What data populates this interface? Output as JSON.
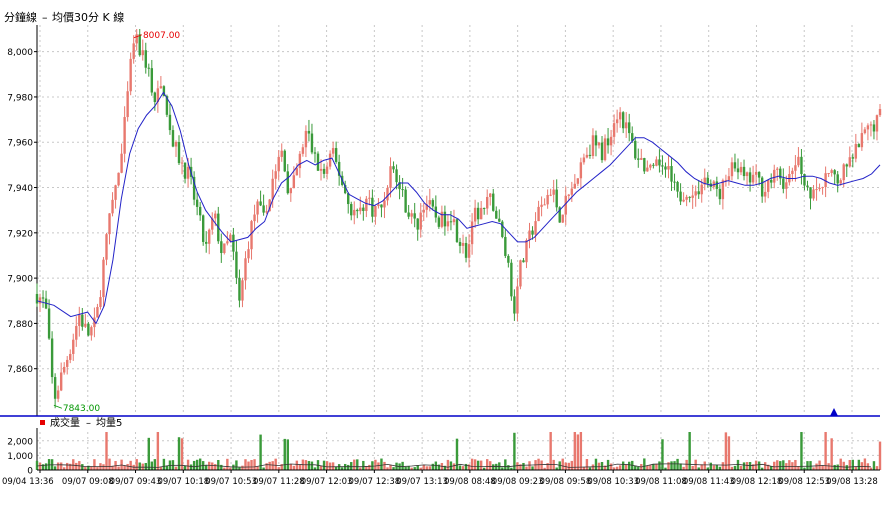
{
  "header": {
    "title": "分鐘線",
    "legend_dash": "–",
    "legend_label": "均價30分 K 線"
  },
  "volume_panel": {
    "legend_label": "成交量",
    "ma_label": "均量5",
    "yticks": [
      "2,000",
      "1,000",
      "0"
    ],
    "ytick_values": [
      2000,
      1000,
      0
    ],
    "ylim": [
      0,
      2600
    ]
  },
  "chart_data": {
    "type": "candlestick",
    "title": "分鐘線",
    "series": [
      {
        "name": "K 線",
        "kind": "candlestick"
      },
      {
        "name": "均價30",
        "kind": "line"
      }
    ],
    "ylim": [
      7840,
      8010
    ],
    "yticks": [
      8000,
      7980,
      7960,
      7940,
      7920,
      7900,
      7880,
      7860
    ],
    "ytick_labels": [
      "8,000",
      "7,980",
      "7,960",
      "7,940",
      "7,920",
      "7,900",
      "7,880",
      "7,860"
    ],
    "xtick_labels": [
      "09/04 13:36",
      "09/07 09:08",
      "09/07 09:43",
      "09/07 10:18",
      "09/07 10:53",
      "09/07 11:28",
      "09/07 12:03",
      "09/07 12:38",
      "09/07 13:13",
      "09/08 08:48",
      "09/08 09:23",
      "09/08 09:58",
      "09/08 10:33",
      "09/08 11:08",
      "09/08 11:43",
      "09/08 12:18",
      "09/08 12:53",
      "09/08 13:28"
    ],
    "annotations": {
      "high": {
        "label": "8007.00",
        "value": 8007
      },
      "low": {
        "label": "7843.00",
        "value": 7843
      }
    },
    "close_path": [
      {
        "t": 0.0,
        "v": 7893
      },
      {
        "t": 0.01,
        "v": 7888
      },
      {
        "t": 0.02,
        "v": 7846
      },
      {
        "t": 0.04,
        "v": 7870
      },
      {
        "t": 0.05,
        "v": 7884
      },
      {
        "t": 0.06,
        "v": 7875
      },
      {
        "t": 0.07,
        "v": 7880
      },
      {
        "t": 0.08,
        "v": 7910
      },
      {
        "t": 0.09,
        "v": 7935
      },
      {
        "t": 0.1,
        "v": 7952
      },
      {
        "t": 0.11,
        "v": 7990
      },
      {
        "t": 0.115,
        "v": 8006
      },
      {
        "t": 0.13,
        "v": 7995
      },
      {
        "t": 0.14,
        "v": 7978
      },
      {
        "t": 0.15,
        "v": 7985
      },
      {
        "t": 0.16,
        "v": 7960
      },
      {
        "t": 0.17,
        "v": 7952
      },
      {
        "t": 0.18,
        "v": 7945
      },
      {
        "t": 0.19,
        "v": 7930
      },
      {
        "t": 0.2,
        "v": 7912
      },
      {
        "t": 0.21,
        "v": 7928
      },
      {
        "t": 0.22,
        "v": 7910
      },
      {
        "t": 0.23,
        "v": 7918
      },
      {
        "t": 0.24,
        "v": 7888
      },
      {
        "t": 0.25,
        "v": 7915
      },
      {
        "t": 0.26,
        "v": 7932
      },
      {
        "t": 0.27,
        "v": 7925
      },
      {
        "t": 0.28,
        "v": 7945
      },
      {
        "t": 0.29,
        "v": 7955
      },
      {
        "t": 0.3,
        "v": 7935
      },
      {
        "t": 0.31,
        "v": 7950
      },
      {
        "t": 0.32,
        "v": 7965
      },
      {
        "t": 0.33,
        "v": 7952
      },
      {
        "t": 0.34,
        "v": 7945
      },
      {
        "t": 0.35,
        "v": 7955
      },
      {
        "t": 0.36,
        "v": 7945
      },
      {
        "t": 0.37,
        "v": 7932
      },
      {
        "t": 0.38,
        "v": 7928
      },
      {
        "t": 0.39,
        "v": 7935
      },
      {
        "t": 0.4,
        "v": 7930
      },
      {
        "t": 0.41,
        "v": 7932
      },
      {
        "t": 0.42,
        "v": 7950
      },
      {
        "t": 0.43,
        "v": 7940
      },
      {
        "t": 0.44,
        "v": 7930
      },
      {
        "t": 0.45,
        "v": 7922
      },
      {
        "t": 0.46,
        "v": 7935
      },
      {
        "t": 0.47,
        "v": 7928
      },
      {
        "t": 0.48,
        "v": 7925
      },
      {
        "t": 0.49,
        "v": 7930
      },
      {
        "t": 0.5,
        "v": 7918
      },
      {
        "t": 0.51,
        "v": 7910
      },
      {
        "t": 0.52,
        "v": 7928
      },
      {
        "t": 0.53,
        "v": 7930
      },
      {
        "t": 0.54,
        "v": 7935
      },
      {
        "t": 0.55,
        "v": 7920
      },
      {
        "t": 0.56,
        "v": 7905
      },
      {
        "t": 0.565,
        "v": 7882
      },
      {
        "t": 0.57,
        "v": 7900
      },
      {
        "t": 0.58,
        "v": 7912
      },
      {
        "t": 0.59,
        "v": 7925
      },
      {
        "t": 0.6,
        "v": 7932
      },
      {
        "t": 0.61,
        "v": 7940
      },
      {
        "t": 0.62,
        "v": 7928
      },
      {
        "t": 0.63,
        "v": 7935
      },
      {
        "t": 0.64,
        "v": 7945
      },
      {
        "t": 0.65,
        "v": 7955
      },
      {
        "t": 0.66,
        "v": 7960
      },
      {
        "t": 0.67,
        "v": 7955
      },
      {
        "t": 0.68,
        "v": 7965
      },
      {
        "t": 0.69,
        "v": 7975
      },
      {
        "t": 0.7,
        "v": 7965
      },
      {
        "t": 0.71,
        "v": 7955
      },
      {
        "t": 0.72,
        "v": 7950
      },
      {
        "t": 0.73,
        "v": 7945
      },
      {
        "t": 0.74,
        "v": 7952
      },
      {
        "t": 0.75,
        "v": 7945
      },
      {
        "t": 0.76,
        "v": 7935
      },
      {
        "t": 0.77,
        "v": 7940
      },
      {
        "t": 0.78,
        "v": 7935
      },
      {
        "t": 0.79,
        "v": 7945
      },
      {
        "t": 0.8,
        "v": 7940
      },
      {
        "t": 0.81,
        "v": 7938
      },
      {
        "t": 0.82,
        "v": 7945
      },
      {
        "t": 0.83,
        "v": 7950
      },
      {
        "t": 0.84,
        "v": 7942
      },
      {
        "t": 0.85,
        "v": 7945
      },
      {
        "t": 0.86,
        "v": 7940
      },
      {
        "t": 0.87,
        "v": 7943
      },
      {
        "t": 0.88,
        "v": 7946
      },
      {
        "t": 0.89,
        "v": 7940
      },
      {
        "t": 0.9,
        "v": 7952
      },
      {
        "t": 0.91,
        "v": 7945
      },
      {
        "t": 0.92,
        "v": 7935
      },
      {
        "t": 0.93,
        "v": 7940
      },
      {
        "t": 0.94,
        "v": 7945
      },
      {
        "t": 0.95,
        "v": 7942
      },
      {
        "t": 0.96,
        "v": 7948
      },
      {
        "t": 0.97,
        "v": 7955
      },
      {
        "t": 0.98,
        "v": 7962
      },
      {
        "t": 1.0,
        "v": 7972
      }
    ],
    "moving_average_30": [
      {
        "t": 0.0,
        "v": 7890
      },
      {
        "t": 0.02,
        "v": 7888
      },
      {
        "t": 0.04,
        "v": 7883
      },
      {
        "t": 0.06,
        "v": 7885
      },
      {
        "t": 0.07,
        "v": 7880
      },
      {
        "t": 0.08,
        "v": 7888
      },
      {
        "t": 0.09,
        "v": 7908
      },
      {
        "t": 0.1,
        "v": 7935
      },
      {
        "t": 0.11,
        "v": 7955
      },
      {
        "t": 0.12,
        "v": 7966
      },
      {
        "t": 0.13,
        "v": 7972
      },
      {
        "t": 0.14,
        "v": 7976
      },
      {
        "t": 0.15,
        "v": 7982
      },
      {
        "t": 0.16,
        "v": 7976
      },
      {
        "t": 0.17,
        "v": 7965
      },
      {
        "t": 0.18,
        "v": 7950
      },
      {
        "t": 0.19,
        "v": 7938
      },
      {
        "t": 0.2,
        "v": 7930
      },
      {
        "t": 0.21,
        "v": 7925
      },
      {
        "t": 0.22,
        "v": 7920
      },
      {
        "t": 0.23,
        "v": 7916
      },
      {
        "t": 0.24,
        "v": 7917
      },
      {
        "t": 0.25,
        "v": 7918
      },
      {
        "t": 0.26,
        "v": 7922
      },
      {
        "t": 0.27,
        "v": 7925
      },
      {
        "t": 0.28,
        "v": 7935
      },
      {
        "t": 0.29,
        "v": 7942
      },
      {
        "t": 0.3,
        "v": 7945
      },
      {
        "t": 0.31,
        "v": 7950
      },
      {
        "t": 0.32,
        "v": 7952
      },
      {
        "t": 0.33,
        "v": 7950
      },
      {
        "t": 0.34,
        "v": 7952
      },
      {
        "t": 0.35,
        "v": 7953
      },
      {
        "t": 0.36,
        "v": 7945
      },
      {
        "t": 0.37,
        "v": 7937
      },
      {
        "t": 0.38,
        "v": 7935
      },
      {
        "t": 0.39,
        "v": 7933
      },
      {
        "t": 0.4,
        "v": 7932
      },
      {
        "t": 0.41,
        "v": 7934
      },
      {
        "t": 0.42,
        "v": 7938
      },
      {
        "t": 0.43,
        "v": 7942
      },
      {
        "t": 0.44,
        "v": 7942
      },
      {
        "t": 0.45,
        "v": 7938
      },
      {
        "t": 0.46,
        "v": 7933
      },
      {
        "t": 0.47,
        "v": 7930
      },
      {
        "t": 0.48,
        "v": 7928
      },
      {
        "t": 0.49,
        "v": 7928
      },
      {
        "t": 0.5,
        "v": 7926
      },
      {
        "t": 0.51,
        "v": 7922
      },
      {
        "t": 0.52,
        "v": 7923
      },
      {
        "t": 0.53,
        "v": 7924
      },
      {
        "t": 0.54,
        "v": 7925
      },
      {
        "t": 0.55,
        "v": 7924
      },
      {
        "t": 0.56,
        "v": 7920
      },
      {
        "t": 0.57,
        "v": 7916
      },
      {
        "t": 0.58,
        "v": 7916
      },
      {
        "t": 0.59,
        "v": 7918
      },
      {
        "t": 0.6,
        "v": 7922
      },
      {
        "t": 0.61,
        "v": 7926
      },
      {
        "t": 0.62,
        "v": 7930
      },
      {
        "t": 0.63,
        "v": 7934
      },
      {
        "t": 0.64,
        "v": 7938
      },
      {
        "t": 0.65,
        "v": 7941
      },
      {
        "t": 0.66,
        "v": 7944
      },
      {
        "t": 0.67,
        "v": 7947
      },
      {
        "t": 0.68,
        "v": 7950
      },
      {
        "t": 0.69,
        "v": 7954
      },
      {
        "t": 0.7,
        "v": 7958
      },
      {
        "t": 0.71,
        "v": 7962
      },
      {
        "t": 0.72,
        "v": 7962
      },
      {
        "t": 0.73,
        "v": 7960
      },
      {
        "t": 0.74,
        "v": 7957
      },
      {
        "t": 0.75,
        "v": 7954
      },
      {
        "t": 0.76,
        "v": 7951
      },
      {
        "t": 0.77,
        "v": 7947
      },
      {
        "t": 0.78,
        "v": 7944
      },
      {
        "t": 0.79,
        "v": 7942
      },
      {
        "t": 0.8,
        "v": 7941
      },
      {
        "t": 0.81,
        "v": 7942
      },
      {
        "t": 0.82,
        "v": 7943
      },
      {
        "t": 0.83,
        "v": 7942
      },
      {
        "t": 0.84,
        "v": 7941
      },
      {
        "t": 0.85,
        "v": 7941
      },
      {
        "t": 0.86,
        "v": 7942
      },
      {
        "t": 0.87,
        "v": 7944
      },
      {
        "t": 0.88,
        "v": 7945
      },
      {
        "t": 0.89,
        "v": 7944
      },
      {
        "t": 0.9,
        "v": 7944
      },
      {
        "t": 0.91,
        "v": 7945
      },
      {
        "t": 0.92,
        "v": 7945
      },
      {
        "t": 0.93,
        "v": 7944
      },
      {
        "t": 0.94,
        "v": 7942
      },
      {
        "t": 0.95,
        "v": 7941
      },
      {
        "t": 0.96,
        "v": 7942
      },
      {
        "t": 0.97,
        "v": 7943
      },
      {
        "t": 0.98,
        "v": 7944
      },
      {
        "t": 0.99,
        "v": 7946
      },
      {
        "t": 1.0,
        "v": 7950
      }
    ],
    "volume_ma5_level": 300
  },
  "colors": {
    "up": "#e8786e",
    "down": "#3a9a3a",
    "ma_line": "#2323c8",
    "grid": "#c8c8c8",
    "axis": "#000000",
    "separator": "#0000c8",
    "high_label": "#e60000",
    "low_label": "#009600",
    "marker": "#0000c8",
    "volume_ma": "#333333"
  },
  "marker_icon": "up-triangle-icon"
}
